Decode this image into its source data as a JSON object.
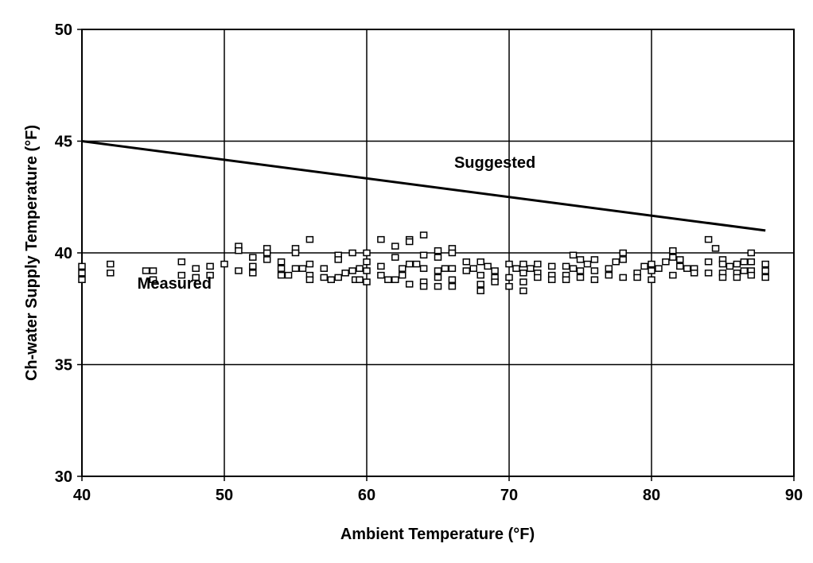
{
  "chart_data": {
    "type": "scatter",
    "title": "",
    "xlabel": "Ambient Temperature (°F)",
    "ylabel": "Ch-water Supply Temperature (°F)",
    "xlim": [
      40,
      90
    ],
    "ylim": [
      30,
      50
    ],
    "xticks": [
      "40",
      "50",
      "60",
      "70",
      "80",
      "90"
    ],
    "yticks": [
      "30",
      "35",
      "40",
      "45",
      "50"
    ],
    "grid": true,
    "legend": "none",
    "annotations": [
      {
        "text": "Suggested",
        "x": 69,
        "y": 43.8
      },
      {
        "text": "Measured",
        "x": 46.5,
        "y": 38.4
      }
    ],
    "series": [
      {
        "name": "Suggested",
        "type": "line",
        "x": [
          40,
          88
        ],
        "y": [
          45.0,
          41.0
        ]
      },
      {
        "name": "Measured",
        "type": "scatter",
        "marker": "square",
        "x": [
          40,
          40,
          40,
          42,
          42,
          44.5,
          45,
          45,
          47,
          47,
          48,
          48,
          49,
          49,
          50,
          51,
          51,
          51,
          52,
          52,
          52,
          53,
          53,
          53,
          54,
          54,
          54,
          54.5,
          55,
          55,
          55,
          55.5,
          56,
          56,
          56,
          56,
          57,
          57,
          57.5,
          58,
          58,
          58,
          58.5,
          59,
          59,
          59.2,
          59.5,
          59.5,
          60,
          60,
          60,
          60,
          61,
          61,
          61,
          61.5,
          62,
          62,
          62,
          62.5,
          62.5,
          63,
          63,
          63,
          63,
          63.5,
          64,
          64,
          64,
          64,
          64,
          65,
          65,
          65,
          65,
          65,
          65.5,
          66,
          66,
          66,
          66,
          66,
          67,
          67,
          67.5,
          68,
          68,
          68,
          68,
          68.5,
          69,
          69,
          69,
          70,
          70,
          70,
          70.5,
          71,
          71,
          71,
          71,
          71.5,
          72,
          72,
          72,
          73,
          73,
          73,
          74,
          74,
          74,
          74.5,
          74.5,
          75,
          75,
          75,
          75.5,
          76,
          76,
          76,
          77,
          77,
          77.5,
          78,
          78,
          78,
          79,
          79,
          79.5,
          80,
          80,
          80,
          80.5,
          81,
          81.5,
          81.5,
          81.5,
          82,
          82,
          82.5,
          83,
          83,
          84,
          84,
          84,
          84.5,
          85,
          85,
          85,
          85,
          85.5,
          86,
          86,
          86,
          86.5,
          86.5,
          87,
          87,
          87,
          87,
          88,
          88,
          88
        ],
        "y": [
          39.4,
          39.1,
          38.8,
          39.5,
          39.1,
          39.2,
          39.2,
          38.8,
          39.6,
          39.0,
          39.3,
          38.9,
          39.4,
          39.0,
          39.5,
          40.3,
          40.1,
          39.2,
          39.8,
          39.4,
          39.1,
          40.2,
          40.0,
          39.7,
          39.6,
          39.3,
          39.0,
          39.0,
          40.2,
          40.0,
          39.3,
          39.3,
          40.6,
          39.5,
          39.0,
          38.8,
          39.3,
          38.9,
          38.8,
          39.9,
          39.7,
          38.9,
          39.1,
          40.0,
          39.2,
          38.8,
          38.8,
          39.3,
          40.0,
          39.6,
          39.2,
          38.7,
          40.6,
          39.4,
          39.0,
          38.8,
          40.3,
          39.8,
          38.8,
          39.3,
          39.0,
          40.6,
          40.5,
          39.5,
          38.6,
          39.5,
          40.8,
          39.9,
          39.3,
          38.7,
          38.5,
          40.1,
          39.8,
          39.2,
          38.9,
          38.5,
          39.3,
          40.2,
          40.0,
          39.3,
          38.8,
          38.5,
          39.6,
          39.2,
          39.3,
          39.6,
          39.0,
          38.6,
          38.3,
          39.4,
          39.2,
          38.9,
          38.7,
          39.5,
          38.9,
          38.5,
          39.3,
          39.5,
          39.1,
          38.7,
          38.3,
          39.3,
          39.5,
          39.1,
          38.9,
          39.4,
          39.0,
          38.8,
          39.4,
          39.0,
          38.8,
          39.9,
          39.3,
          39.7,
          39.2,
          38.9,
          39.5,
          39.7,
          39.2,
          38.8,
          39.3,
          39.0,
          39.6,
          40.0,
          39.7,
          38.9,
          39.1,
          38.9,
          39.4,
          39.5,
          39.2,
          38.8,
          39.3,
          39.6,
          40.1,
          39.8,
          39.0,
          39.7,
          39.4,
          39.3,
          39.3,
          39.1,
          40.6,
          39.6,
          39.1,
          40.2,
          39.7,
          39.5,
          39.1,
          38.9,
          39.4,
          39.5,
          39.1,
          38.9,
          39.6,
          39.2,
          40.0,
          39.6,
          39.2,
          39.0,
          39.5,
          39.2,
          38.9
        ]
      }
    ]
  }
}
